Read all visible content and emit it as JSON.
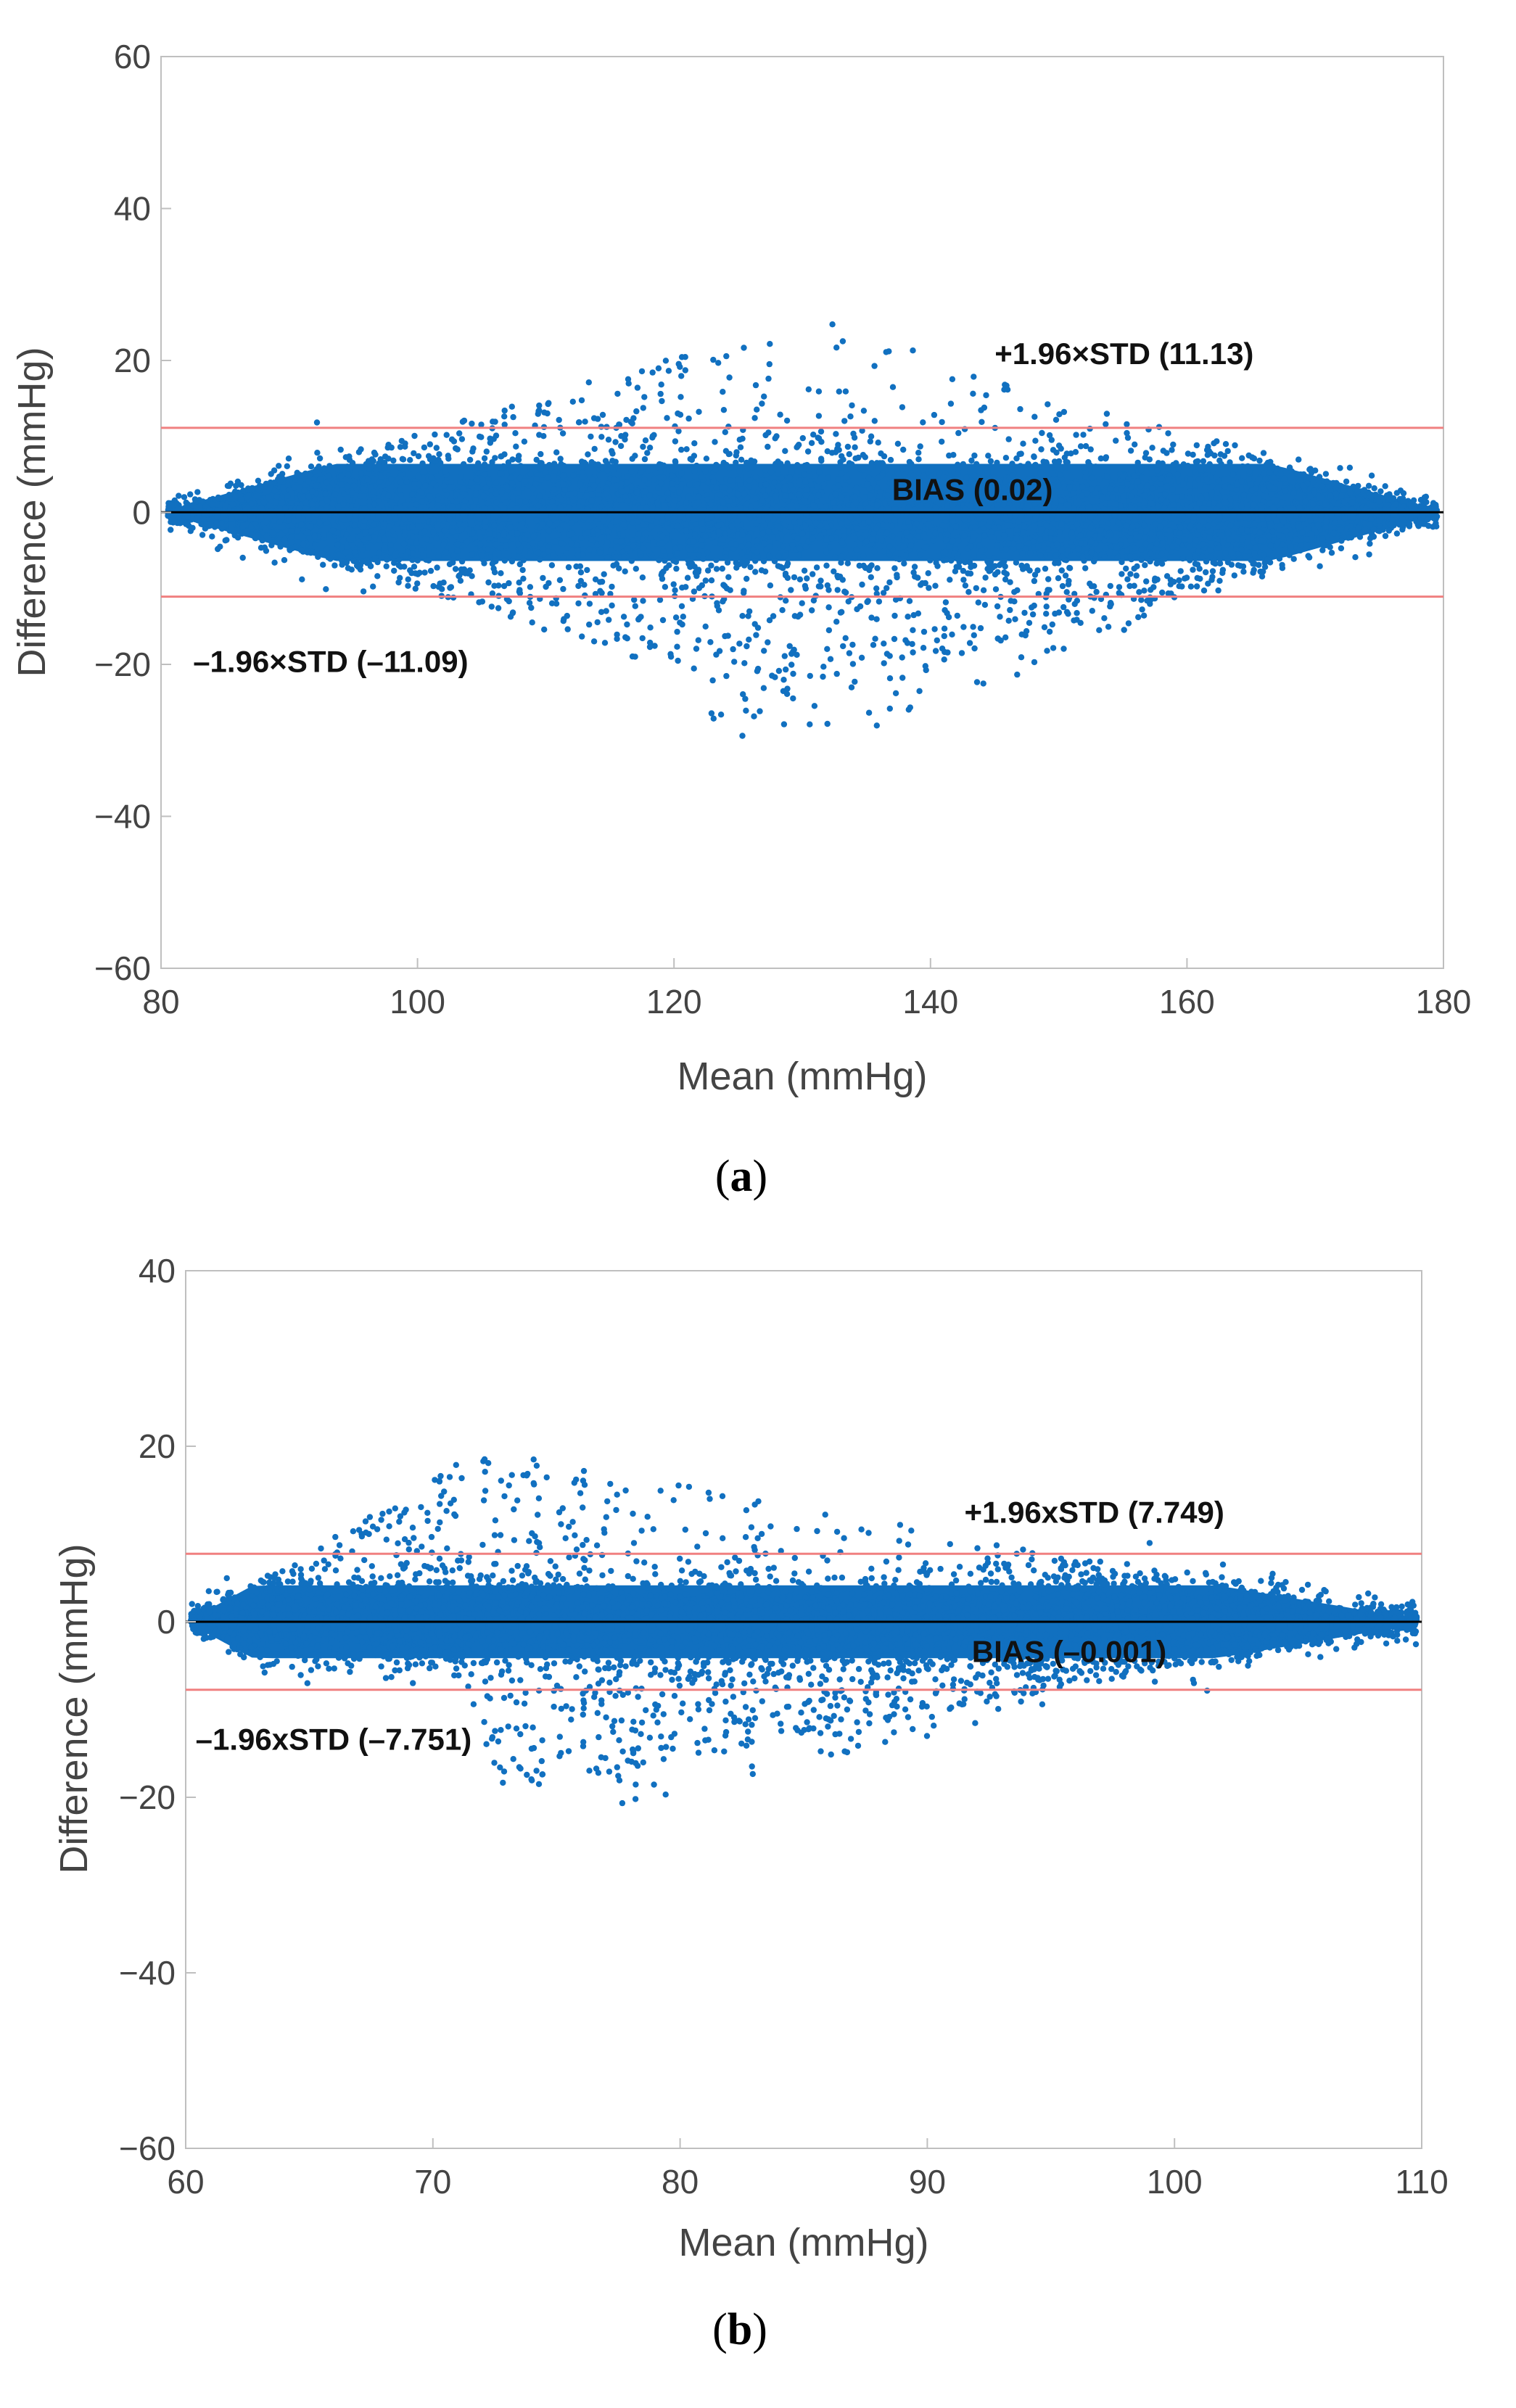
{
  "chart_data": [
    {
      "type": "scatter",
      "caption_letter": "a",
      "xlabel": "Mean (mmHg)",
      "ylabel": "Difference (mmHg)",
      "xlim": [
        80,
        180
      ],
      "ylim": [
        -60,
        60
      ],
      "x_ticks": [
        "80",
        "100",
        "120",
        "140",
        "160",
        "180"
      ],
      "y_ticks": [
        "60",
        "40",
        "20",
        "0",
        "−20",
        "−40",
        "−60"
      ],
      "x_tick_values": [
        80,
        100,
        120,
        140,
        160,
        180
      ],
      "y_tick_values": [
        60,
        40,
        20,
        0,
        -20,
        -40,
        -60
      ],
      "grid": false,
      "point_color": "#1170C0",
      "bias": 0.02,
      "upper_loa": 11.13,
      "lower_loa": -11.09,
      "bias_line_color": "#000000",
      "loa_line_color": "#F08080",
      "annotations": {
        "upper": "+1.96×STD (11.13)",
        "bias": "BIAS (0.02)",
        "lower": "–1.96×STD (–11.09)"
      },
      "annotation_values": {
        "upper": [
          145,
          19.5
        ],
        "bias": [
          137,
          1.6
        ],
        "lower": [
          82.5,
          -21
        ]
      },
      "cloud": {
        "x_start": 80.5,
        "x_peak": 130,
        "x_end": 179.5,
        "core_sd": 4.0,
        "spread_peak": 26,
        "skew_neg_center": 140
      }
    },
    {
      "type": "scatter",
      "caption_letter": "b",
      "xlabel": "Mean (mmHg)",
      "ylabel": "Difference (mmHg)",
      "xlim": [
        60,
        110
      ],
      "ylim": [
        -60,
        40
      ],
      "x_ticks": [
        "60",
        "70",
        "80",
        "90",
        "100",
        "110"
      ],
      "y_ticks": [
        "40",
        "20",
        "0",
        "−20",
        "−40",
        "−60"
      ],
      "x_tick_values": [
        60,
        70,
        80,
        90,
        100,
        110
      ],
      "y_tick_values": [
        40,
        20,
        0,
        -20,
        -40,
        -60
      ],
      "grid": false,
      "point_color": "#1170C0",
      "bias": -0.001,
      "upper_loa": 7.749,
      "lower_loa": -7.751,
      "bias_line_color": "#000000",
      "loa_line_color": "#F08080",
      "annotations": {
        "upper": "+1.96xSTD (7.749)",
        "bias": "BIAS (–0.001)",
        "lower": "–1.96xSTD (–7.751)"
      },
      "annotation_values": {
        "upper": [
          91.5,
          11.3
        ],
        "bias": [
          91.8,
          -4.6
        ],
        "lower": [
          60.4,
          -14.6
        ]
      },
      "cloud": {
        "x_start": 60.2,
        "x_peak": 72,
        "x_end": 109.8,
        "core_sd": 2.6,
        "spread_peak": 20,
        "skew_neg_center": 86
      }
    }
  ]
}
